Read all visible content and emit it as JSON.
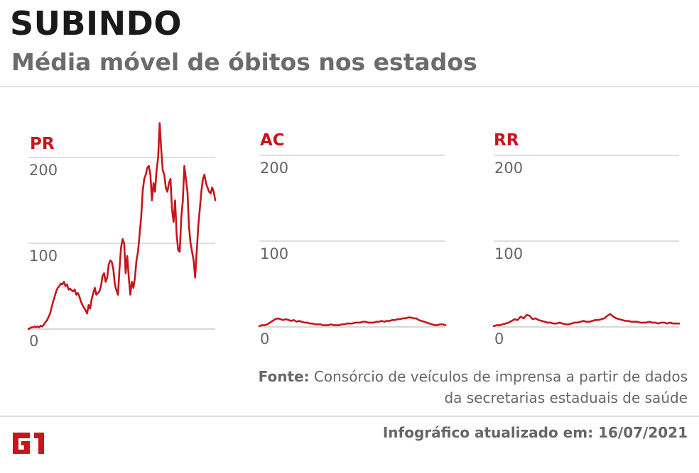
{
  "header": {
    "title": "SUBINDO",
    "subtitle": "Média móvel de óbitos nos estados"
  },
  "footer": {
    "source_label": "Fonte:",
    "source_text": "Consórcio de veículos de imprensa a partir de dados da secretarias estaduais de saúde",
    "updated_label": "Infográfico atualizado em:",
    "updated_date": "16/07/2021",
    "logo_text": "G1"
  },
  "colors": {
    "line": "#c4161c",
    "grid": "#cccccc",
    "label": "#c4161c",
    "logo": "#c4161c"
  },
  "chart_data": [
    {
      "type": "line",
      "title": "PR",
      "ylim": [
        0,
        270
      ],
      "yticks": [
        0,
        100,
        200
      ],
      "gridlines": [
        0,
        100,
        200
      ],
      "x_range": [
        0,
        98
      ],
      "series": [
        {
          "values": [
            0,
            1,
            2,
            2,
            3,
            2,
            3,
            2,
            4,
            3,
            5,
            8,
            10,
            14,
            18,
            25,
            32,
            38,
            44,
            48,
            50,
            53,
            52,
            55,
            50,
            52,
            46,
            47,
            45,
            44,
            46,
            40,
            42,
            38,
            32,
            28,
            25,
            22,
            18,
            28,
            24,
            35,
            42,
            48,
            40,
            42,
            44,
            50,
            62,
            65,
            55,
            60,
            75,
            80,
            78,
            70,
            52,
            45,
            40,
            70,
            95,
            105,
            100,
            65,
            85,
            60,
            40,
            55,
            48,
            60,
            80,
            90,
            110,
            130,
            160,
            175,
            180,
            188,
            190,
            180,
            150,
            170,
            160,
            185,
            200,
            240,
            210,
            185,
            180,
            165,
            160,
            170,
            175,
            140,
            125,
            150,
            110,
            92,
            90,
            130,
            150,
            190,
            175,
            160,
            120,
            100,
            90,
            80,
            60,
            90,
            120,
            140,
            160,
            175,
            180,
            170,
            165,
            160,
            158,
            165,
            160,
            150
          ]
        }
      ]
    },
    {
      "type": "line",
      "title": "AC",
      "ylim": [
        0,
        270
      ],
      "yticks": [
        0,
        100,
        200
      ],
      "gridlines": [
        0,
        100,
        200
      ],
      "x_range": [
        0,
        98
      ],
      "series": [
        {
          "values": [
            1,
            2,
            2,
            3,
            5,
            7,
            9,
            10,
            9,
            8,
            9,
            8,
            7,
            8,
            6,
            7,
            6,
            5,
            5,
            4,
            4,
            3,
            3,
            3,
            2,
            2,
            2,
            3,
            2,
            2,
            2,
            3,
            3,
            4,
            4,
            4,
            5,
            5,
            5,
            6,
            6,
            5,
            5,
            5,
            6,
            6,
            7,
            6,
            7,
            7,
            8,
            8,
            9,
            9,
            10,
            10,
            11,
            11,
            10,
            10,
            8,
            7,
            6,
            5,
            4,
            3,
            2,
            2,
            3,
            3,
            2
          ]
        }
      ]
    },
    {
      "type": "line",
      "title": "RR",
      "ylim": [
        0,
        270
      ],
      "yticks": [
        0,
        100,
        200
      ],
      "gridlines": [
        0,
        100,
        200
      ],
      "x_range": [
        0,
        98
      ],
      "series": [
        {
          "values": [
            1,
            2,
            2,
            3,
            4,
            5,
            7,
            9,
            8,
            12,
            10,
            14,
            13,
            9,
            10,
            8,
            7,
            6,
            5,
            5,
            4,
            4,
            5,
            4,
            3,
            3,
            4,
            5,
            5,
            6,
            7,
            6,
            6,
            7,
            8,
            8,
            9,
            10,
            13,
            15,
            12,
            10,
            9,
            8,
            7,
            7,
            6,
            6,
            6,
            5,
            5,
            5,
            6,
            5,
            5,
            4,
            5,
            5,
            4,
            5,
            4,
            4,
            4
          ]
        }
      ]
    }
  ]
}
